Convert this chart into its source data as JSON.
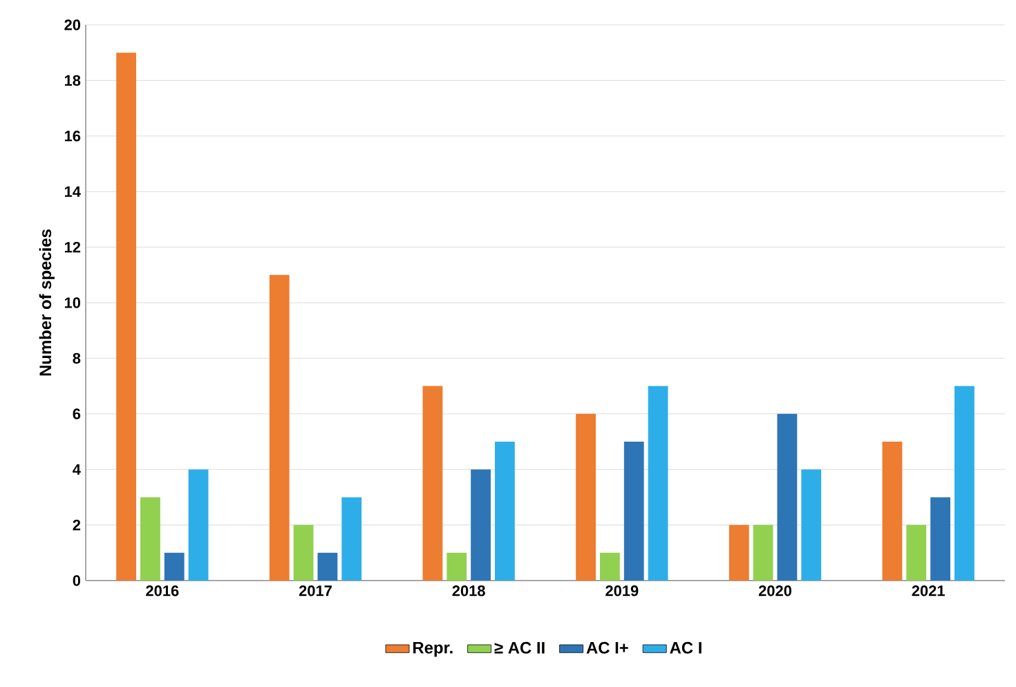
{
  "chart_data": {
    "type": "bar",
    "ylabel": "Number of species",
    "categories": [
      "2016",
      "2017",
      "2018",
      "2019",
      "2020",
      "2021"
    ],
    "series": [
      {
        "name": "Repr.",
        "color": "#ed7d31",
        "values": [
          19,
          11,
          7,
          6,
          2,
          5
        ]
      },
      {
        "name": "≥ AC II",
        "color": "#92d050",
        "values": [
          3,
          2,
          1,
          1,
          2,
          2
        ]
      },
      {
        "name": "AC I+",
        "color": "#2e75b6",
        "values": [
          1,
          1,
          4,
          5,
          6,
          3
        ]
      },
      {
        "name": "AC I",
        "color": "#2eaee8",
        "values": [
          4,
          3,
          5,
          7,
          4,
          7
        ]
      }
    ],
    "ylim": [
      0,
      20
    ],
    "yticks": [
      0,
      2,
      4,
      6,
      8,
      10,
      12,
      14,
      16,
      18,
      20
    ],
    "grid": "y",
    "legend": "bottom"
  }
}
